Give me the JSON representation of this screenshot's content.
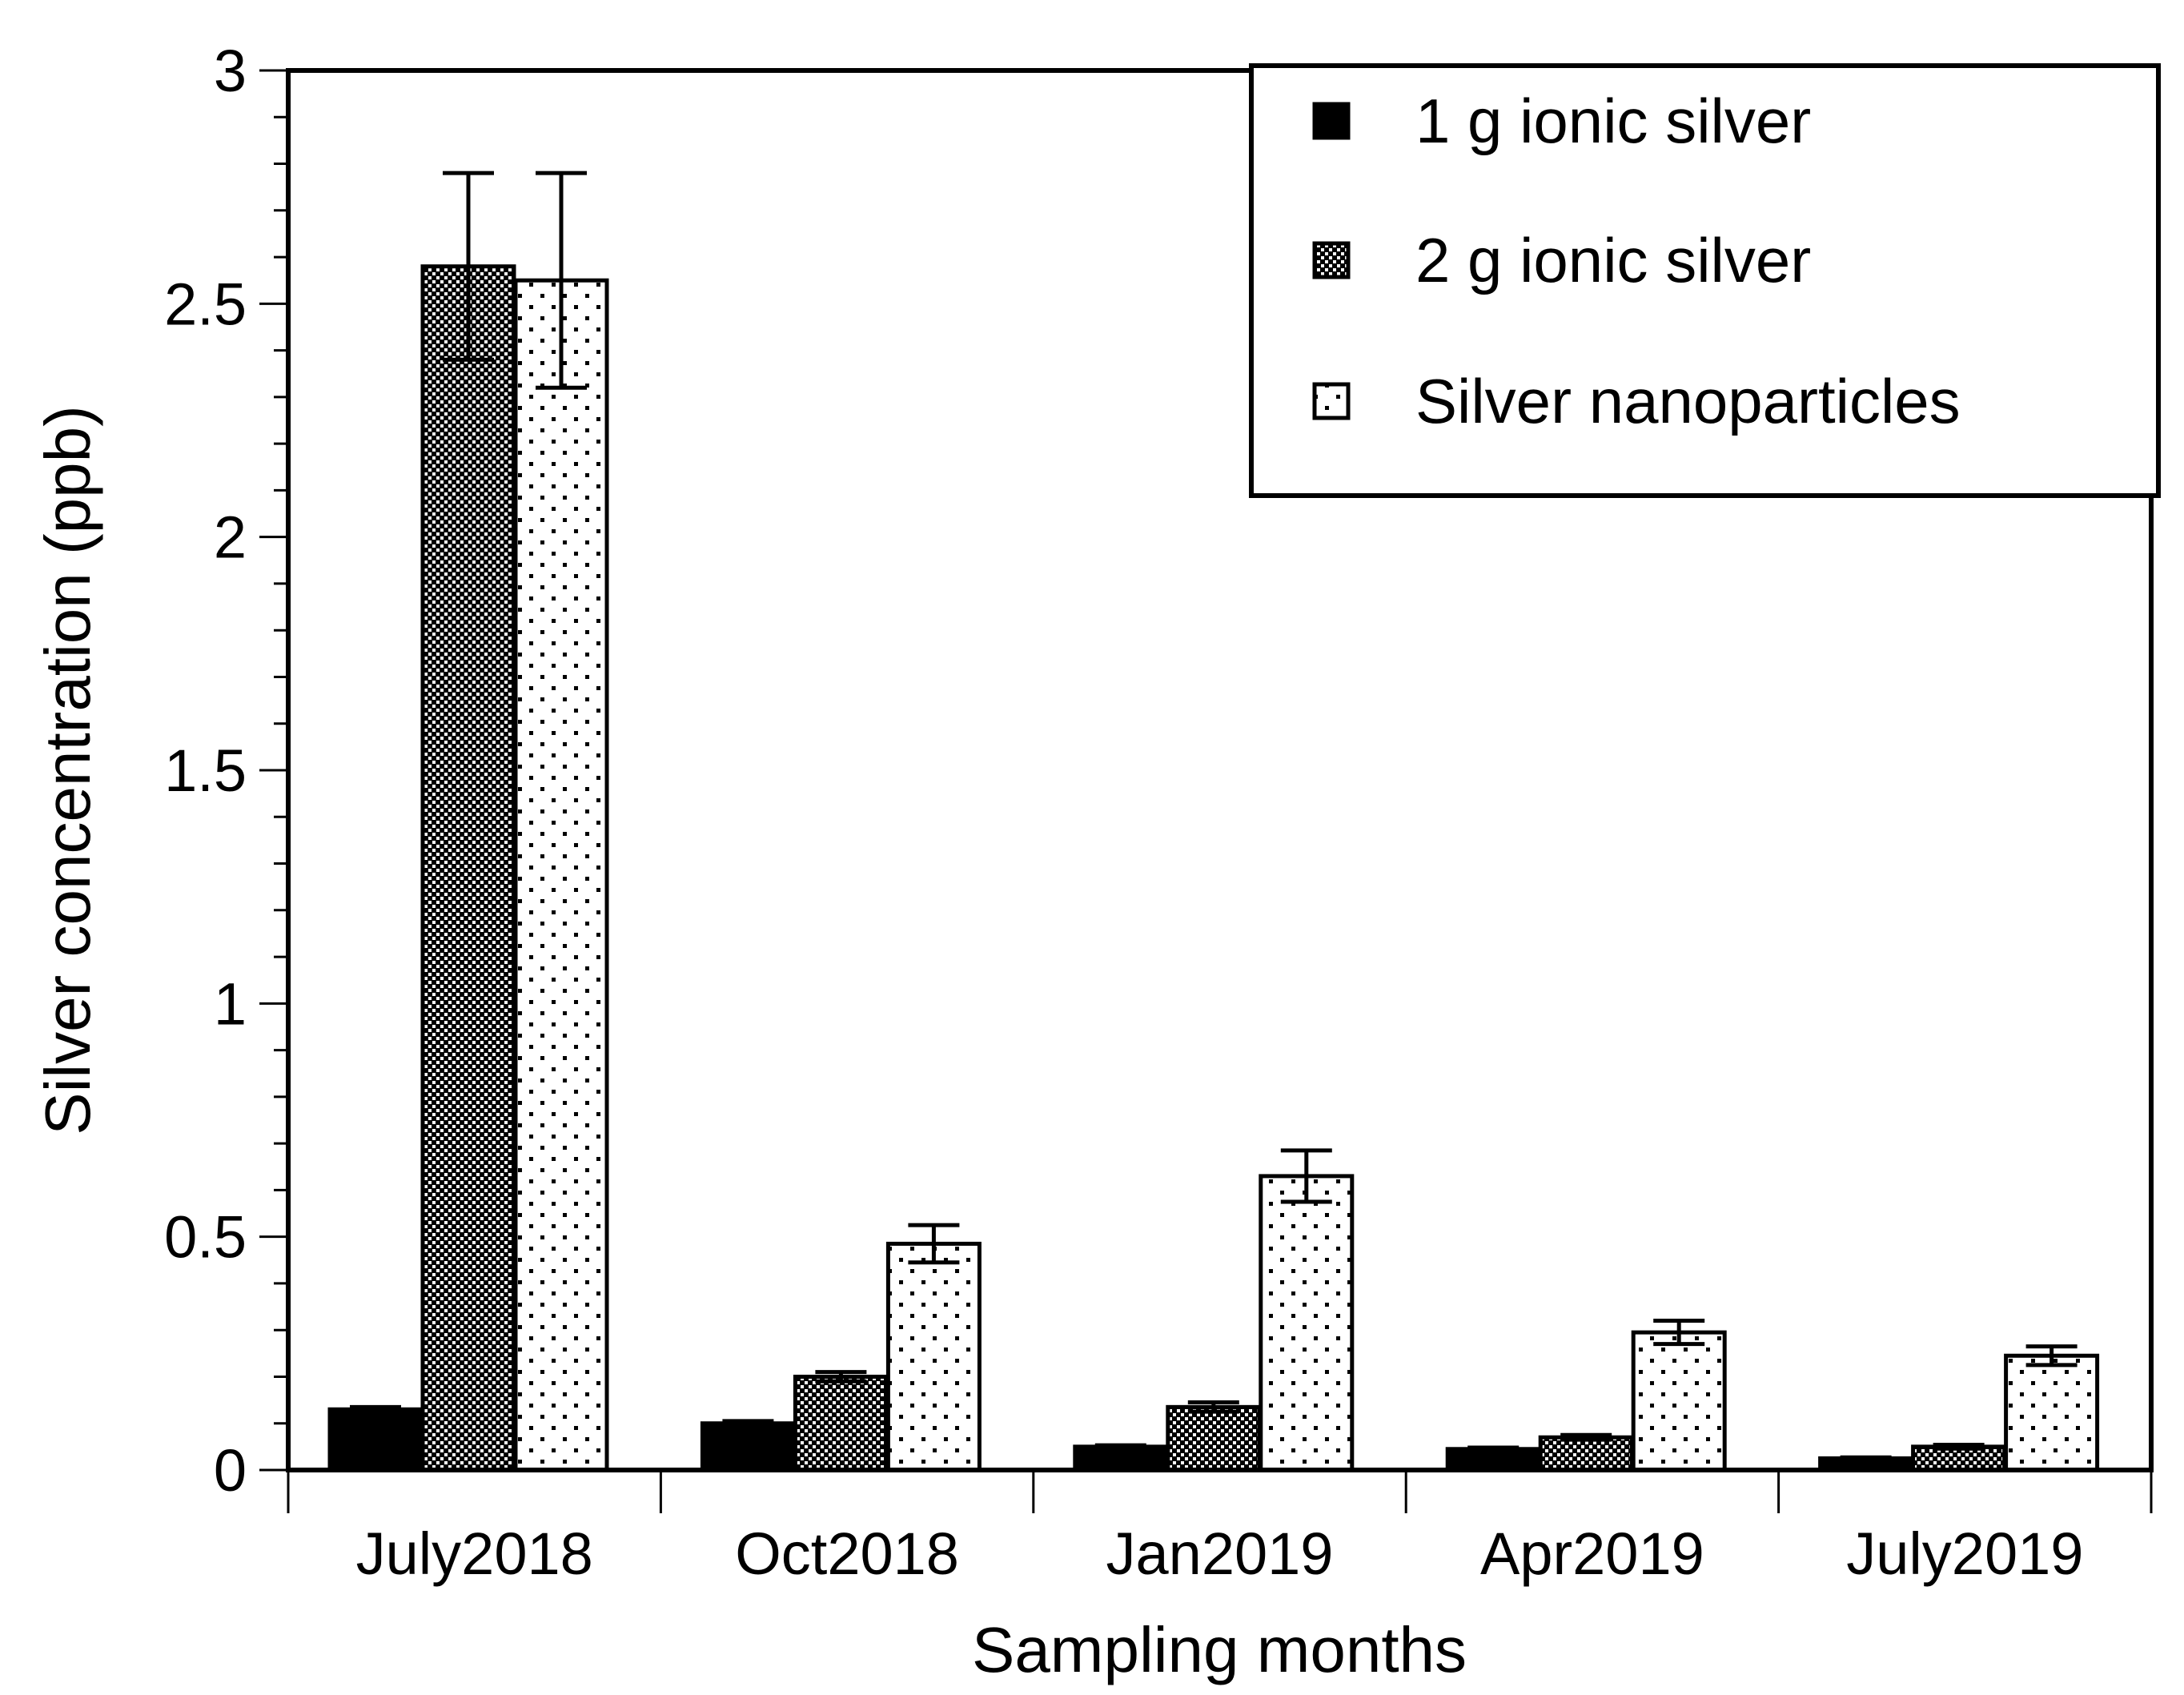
{
  "chart_data": {
    "type": "bar",
    "title": "",
    "xlabel": "Sampling months",
    "ylabel": "Silver concentration (ppb)",
    "ylim": [
      0,
      3
    ],
    "yticks": [
      "0",
      "0.5",
      "1",
      "1.5",
      "2",
      "2.5",
      "3"
    ],
    "grid": false,
    "legend_position": "top-right",
    "categories": [
      "July2018",
      "Oct2018",
      "Jan2019",
      "Apr2019",
      "July2019"
    ],
    "series": [
      {
        "name": "1 g ionic silver",
        "pattern": "solid",
        "values": [
          0.13,
          0.1,
          0.05,
          0.045,
          0.025
        ],
        "errors": [
          0.005,
          0.005,
          0.003,
          0.003,
          0.002
        ]
      },
      {
        "name": "2 g ionic silver",
        "pattern": "checker",
        "values": [
          2.58,
          0.2,
          0.135,
          0.07,
          0.05
        ],
        "errors": [
          0.2,
          0.01,
          0.01,
          0.005,
          0.004
        ]
      },
      {
        "name": "Silver nanoparticles",
        "pattern": "dots",
        "values": [
          2.55,
          0.485,
          0.63,
          0.295,
          0.245
        ],
        "errors": [
          0.23,
          0.04,
          0.055,
          0.025,
          0.02
        ]
      }
    ],
    "colors": {
      "axis": "#000000",
      "fill_dark": "#000000",
      "fill_light": "#ffffff"
    }
  }
}
